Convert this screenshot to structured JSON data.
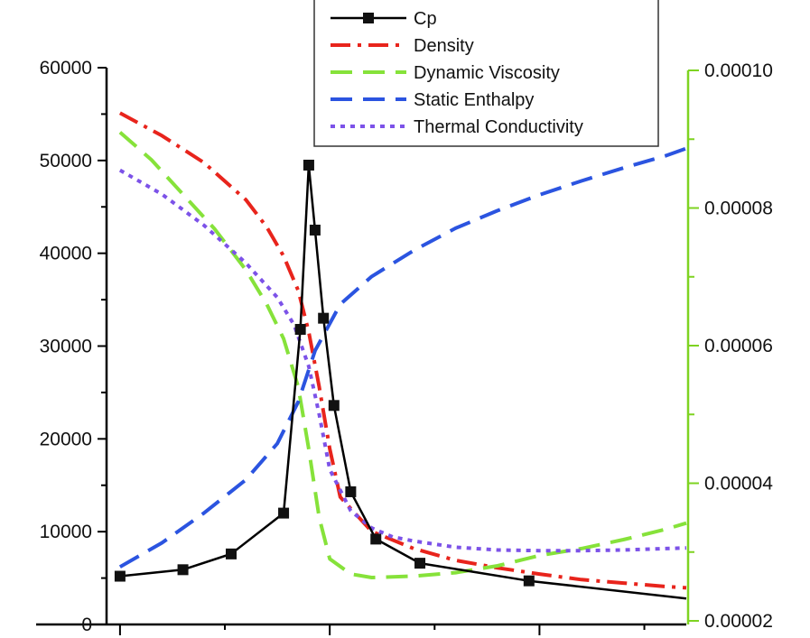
{
  "chart_data": {
    "type": "line",
    "title": "",
    "xlabel": "",
    "ylabel": "",
    "ylabel_right": "",
    "xlim": [
      0,
      31
    ],
    "ylim": [
      0,
      60000
    ],
    "ylim_right": [
      2e-05,
      0.0001
    ],
    "x_ticks": [
      4,
      14,
      24
    ],
    "y_ticks": [
      0,
      10000,
      20000,
      30000,
      40000,
      50000,
      60000
    ],
    "y_tick_labels": [
      "0",
      "10000",
      "20000",
      "30000",
      "40000",
      "50000",
      "60000"
    ],
    "y_right_ticks": [
      2e-05,
      4e-05,
      6e-05,
      8e-05,
      0.0001
    ],
    "y_right_tick_labels": [
      "0.00002",
      "0.00004",
      "0.00006",
      "0.00008",
      "0.00010"
    ],
    "grid": false,
    "legend_position": "top-center",
    "axis_colors": {
      "left": "#000000",
      "right": "#7ed321"
    },
    "series": [
      {
        "name": "Cp",
        "axis": "left",
        "color": "#000000",
        "style": "solid-square-markers",
        "x": [
          4,
          7,
          9.3,
          11.8,
          12.6,
          13.0,
          13.3,
          13.7,
          14.2,
          15.0,
          16.2,
          18.3,
          23.5,
          31
        ],
        "y": [
          5200,
          5900,
          7600,
          12000,
          31800,
          49500,
          42500,
          33000,
          23600,
          14300,
          9200,
          6600,
          4700,
          2800
        ],
        "markers": [
          true,
          true,
          true,
          true,
          true,
          true,
          true,
          true,
          true,
          true,
          true,
          true,
          true,
          false
        ]
      },
      {
        "name": "Density",
        "axis": "right",
        "color": "#e8241c",
        "style": "dash-dot",
        "x": [
          4,
          6,
          8,
          10,
          11,
          11.8,
          12.5,
          13,
          13.5,
          14,
          14.5,
          16,
          18,
          20,
          22,
          24,
          26,
          28,
          30,
          31
        ],
        "y": [
          9.38e-05,
          9.05e-05,
          8.66e-05,
          8.12e-05,
          7.72e-05,
          7.3e-05,
          6.8e-05,
          6.2e-05,
          5.4e-05,
          4.5e-05,
          3.8e-05,
          3.3e-05,
          3.05e-05,
          2.88e-05,
          2.77e-05,
          2.68e-05,
          2.6e-05,
          2.55e-05,
          2.5e-05,
          2.48e-05
        ]
      },
      {
        "name": "Dynamic Viscosity",
        "axis": "right",
        "color": "#86e23a",
        "style": "dashed",
        "x": [
          4,
          5.5,
          7,
          8.5,
          10,
          11,
          11.8,
          12.5,
          13,
          13.5,
          14,
          15,
          16,
          18,
          20,
          22,
          24,
          26,
          28,
          30,
          31
        ],
        "y": [
          9.1e-05,
          8.7e-05,
          8.2e-05,
          7.7e-05,
          7.1e-05,
          6.6e-05,
          6.1e-05,
          5.4e-05,
          4.5e-05,
          3.5e-05,
          2.9e-05,
          2.68e-05,
          2.63e-05,
          2.65e-05,
          2.7e-05,
          2.8e-05,
          2.95e-05,
          3.05e-05,
          3.18e-05,
          3.33e-05,
          3.42e-05
        ]
      },
      {
        "name": "Static Enthalpy",
        "axis": "left",
        "color": "#2b54e0",
        "style": "dashed",
        "x": [
          4,
          6,
          8,
          10,
          11.5,
          12.5,
          13.3,
          14.5,
          16,
          18,
          20,
          22,
          24,
          26,
          28,
          30,
          31
        ],
        "y": [
          6200,
          8800,
          12000,
          15600,
          19500,
          24000,
          29500,
          34500,
          37500,
          40300,
          42700,
          44600,
          46300,
          47800,
          49200,
          50500,
          51300
        ]
      },
      {
        "name": "Thermal Conductivity",
        "axis": "right",
        "color": "#7c52e8",
        "style": "dotted",
        "x": [
          4,
          6,
          8,
          10,
          11.5,
          12.3,
          13,
          13.5,
          14,
          15,
          16,
          17,
          18,
          20,
          22,
          24,
          26,
          28,
          30,
          31
        ],
        "y": [
          8.55e-05,
          8.2e-05,
          7.75e-05,
          7.2e-05,
          6.7e-05,
          6.3e-05,
          5.7e-05,
          5e-05,
          4.2e-05,
          3.6e-05,
          3.35e-05,
          3.22e-05,
          3.16e-05,
          3.07e-05,
          3.03e-05,
          3.02e-05,
          3.02e-05,
          3.03e-05,
          3.05e-05,
          3.06e-05
        ]
      }
    ]
  }
}
